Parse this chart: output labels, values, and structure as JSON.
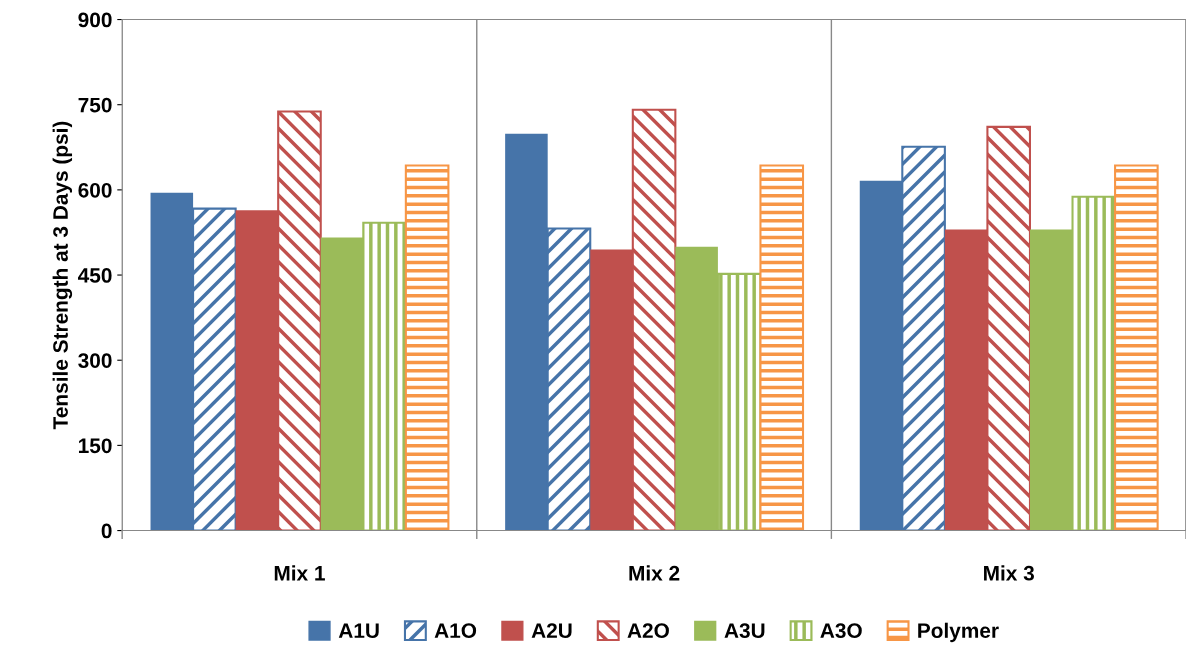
{
  "chart_data": {
    "type": "bar",
    "ylabel": "Tensile Strength at 3 Days (psi)",
    "categories": [
      "Mix 1",
      "Mix 2",
      "Mix 3"
    ],
    "series": [
      {
        "name": "A1U",
        "color": "#4674a9",
        "values": [
          595,
          699,
          616
        ]
      },
      {
        "name": "A1O",
        "color": "#4674a9",
        "values": [
          567,
          532,
          676
        ]
      },
      {
        "name": "A2U",
        "color": "#c0504d",
        "values": [
          564,
          495,
          530
        ]
      },
      {
        "name": "A2O",
        "color": "#c0504d",
        "values": [
          738,
          741,
          711
        ]
      },
      {
        "name": "A3U",
        "color": "#9bbb59",
        "values": [
          516,
          500,
          530
        ]
      },
      {
        "name": "A3O",
        "color": "#9bbb59",
        "values": [
          542,
          452,
          588
        ]
      },
      {
        "name": "Polymer",
        "color": "#f79646",
        "values": [
          643,
          643,
          643
        ]
      }
    ],
    "ylim": [
      0,
      900
    ],
    "yticks": [
      0,
      150,
      300,
      450,
      600,
      750,
      900
    ],
    "grid": "x",
    "legend": "bottom"
  }
}
